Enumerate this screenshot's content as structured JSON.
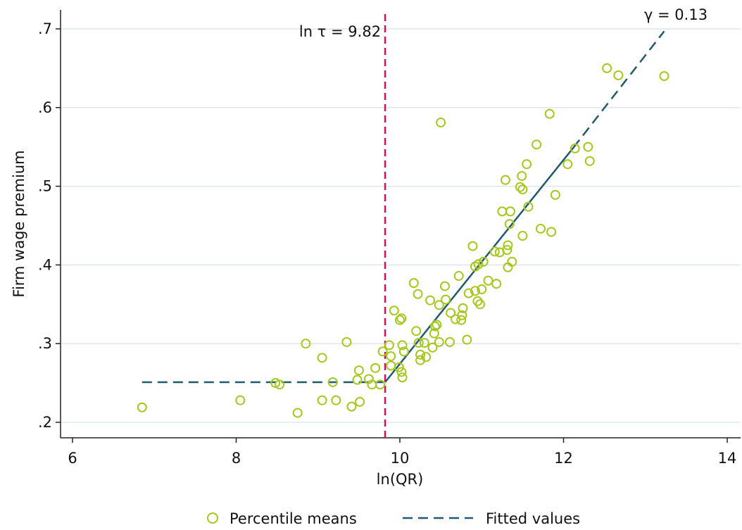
{
  "chart_data": {
    "type": "scatter",
    "xlabel": "ln(QR)",
    "ylabel": "Firm wage premium",
    "xlim": [
      6,
      14
    ],
    "ylim": [
      0.2,
      0.7
    ],
    "x_ticks": [
      {
        "value": 6,
        "label": "6"
      },
      {
        "value": 8,
        "label": "8"
      },
      {
        "value": 10,
        "label": "10"
      },
      {
        "value": 12,
        "label": "12"
      },
      {
        "value": 14,
        "label": "14"
      }
    ],
    "y_ticks": [
      {
        "value": 0.2,
        "label": ".2"
      },
      {
        "value": 0.3,
        "label": ".3"
      },
      {
        "value": 0.4,
        "label": ".4"
      },
      {
        "value": 0.5,
        "label": ".5"
      },
      {
        "value": 0.6,
        "label": ".6"
      },
      {
        "value": 0.7,
        "label": ".7"
      }
    ],
    "grid": "horizontal",
    "legend_position": "bottom",
    "colors": {
      "points": "#a4c81c",
      "fit": "#1f5a6e",
      "threshold": "#c2185b",
      "grid": "#dce8ee",
      "axis": "#222222"
    },
    "series": [
      {
        "name": "Percentile means",
        "kind": "scatter",
        "points": [
          [
            6.85,
            0.219
          ],
          [
            8.05,
            0.228
          ],
          [
            8.48,
            0.25
          ],
          [
            8.53,
            0.248
          ],
          [
            8.75,
            0.212
          ],
          [
            8.85,
            0.3
          ],
          [
            9.05,
            0.282
          ],
          [
            9.05,
            0.228
          ],
          [
            9.18,
            0.251
          ],
          [
            9.22,
            0.228
          ],
          [
            9.35,
            0.302
          ],
          [
            9.41,
            0.22
          ],
          [
            9.48,
            0.254
          ],
          [
            9.5,
            0.266
          ],
          [
            9.51,
            0.226
          ],
          [
            9.62,
            0.255
          ],
          [
            9.66,
            0.248
          ],
          [
            9.7,
            0.269
          ],
          [
            9.76,
            0.248
          ],
          [
            9.79,
            0.29
          ],
          [
            9.87,
            0.298
          ],
          [
            9.89,
            0.284
          ],
          [
            9.89,
            0.272
          ],
          [
            9.93,
            0.342
          ],
          [
            9.99,
            0.27
          ],
          [
            10.0,
            0.33
          ],
          [
            10.02,
            0.332
          ],
          [
            10.02,
            0.264
          ],
          [
            10.03,
            0.298
          ],
          [
            10.03,
            0.257
          ],
          [
            10.05,
            0.29
          ],
          [
            10.17,
            0.377
          ],
          [
            10.2,
            0.316
          ],
          [
            10.22,
            0.363
          ],
          [
            10.23,
            0.301
          ],
          [
            10.25,
            0.279
          ],
          [
            10.25,
            0.286
          ],
          [
            10.3,
            0.301
          ],
          [
            10.32,
            0.283
          ],
          [
            10.37,
            0.355
          ],
          [
            10.4,
            0.295
          ],
          [
            10.42,
            0.313
          ],
          [
            10.43,
            0.322
          ],
          [
            10.45,
            0.324
          ],
          [
            10.48,
            0.349
          ],
          [
            10.48,
            0.302
          ],
          [
            10.5,
            0.581
          ],
          [
            10.55,
            0.373
          ],
          [
            10.56,
            0.356
          ],
          [
            10.61,
            0.302
          ],
          [
            10.62,
            0.339
          ],
          [
            10.68,
            0.331
          ],
          [
            10.72,
            0.386
          ],
          [
            10.75,
            0.33
          ],
          [
            10.76,
            0.336
          ],
          [
            10.77,
            0.345
          ],
          [
            10.82,
            0.305
          ],
          [
            10.84,
            0.364
          ],
          [
            10.89,
            0.424
          ],
          [
            10.92,
            0.398
          ],
          [
            10.92,
            0.367
          ],
          [
            10.95,
            0.354
          ],
          [
            10.96,
            0.401
          ],
          [
            10.98,
            0.35
          ],
          [
            11.0,
            0.369
          ],
          [
            11.02,
            0.404
          ],
          [
            11.08,
            0.38
          ],
          [
            11.16,
            0.417
          ],
          [
            11.18,
            0.376
          ],
          [
            11.22,
            0.416
          ],
          [
            11.25,
            0.468
          ],
          [
            11.29,
            0.508
          ],
          [
            11.31,
            0.419
          ],
          [
            11.32,
            0.397
          ],
          [
            11.32,
            0.425
          ],
          [
            11.34,
            0.452
          ],
          [
            11.35,
            0.468
          ],
          [
            11.37,
            0.404
          ],
          [
            11.47,
            0.499
          ],
          [
            11.49,
            0.513
          ],
          [
            11.5,
            0.496
          ],
          [
            11.5,
            0.437
          ],
          [
            11.55,
            0.528
          ],
          [
            11.57,
            0.474
          ],
          [
            11.67,
            0.553
          ],
          [
            11.72,
            0.446
          ],
          [
            11.83,
            0.592
          ],
          [
            11.85,
            0.442
          ],
          [
            11.9,
            0.489
          ],
          [
            12.05,
            0.528
          ],
          [
            12.14,
            0.548
          ],
          [
            12.3,
            0.55
          ],
          [
            12.32,
            0.532
          ],
          [
            12.53,
            0.65
          ],
          [
            12.67,
            0.641
          ],
          [
            13.23,
            0.64
          ]
        ]
      },
      {
        "name": "Fitted values",
        "kind": "line",
        "segments": [
          {
            "points": [
              [
                6.85,
                0.251
              ],
              [
                9.82,
                0.251
              ]
            ],
            "style": "dashed"
          },
          {
            "points": [
              [
                9.82,
                0.251
              ],
              [
                12.12,
                0.549
              ]
            ],
            "style": "solid"
          },
          {
            "points": [
              [
                12.12,
                0.549
              ],
              [
                13.23,
                0.697
              ]
            ],
            "style": "dashed"
          }
        ]
      }
    ],
    "threshold": {
      "x": 9.82,
      "label": "ln τ = 9.82"
    },
    "annotation": {
      "x": 13.2,
      "y": 0.7,
      "text": "γ = 0.13"
    },
    "legend": {
      "points_label": "Percentile means",
      "fit_label": "Fitted values"
    }
  }
}
